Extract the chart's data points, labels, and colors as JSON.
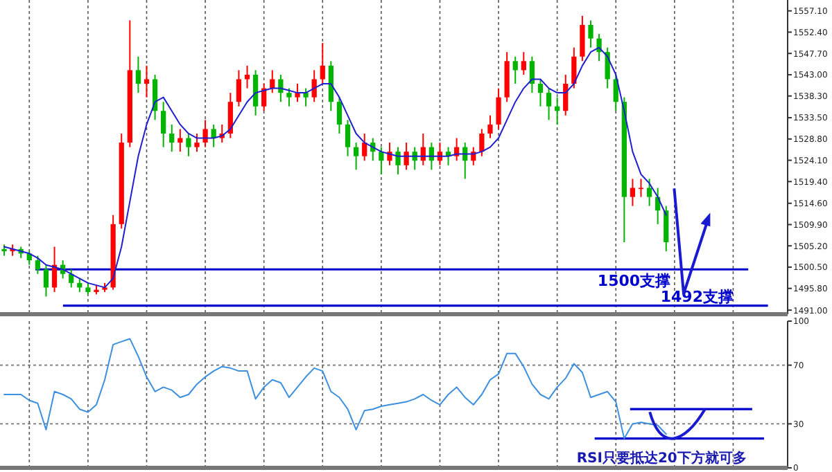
{
  "chart_data": [
    {
      "type": "candlestick",
      "categories": [
        null,
        null,
        null,
        null,
        null,
        null,
        null,
        null,
        null,
        null,
        null,
        null,
        null,
        null,
        null,
        null,
        null,
        null,
        null,
        null,
        null,
        null,
        null,
        null,
        null,
        null,
        null,
        null,
        null,
        null,
        null,
        null,
        null,
        null,
        null,
        null,
        null,
        null,
        null,
        null,
        null,
        null,
        null,
        null,
        null,
        null,
        null,
        null,
        null,
        null,
        null,
        null,
        null,
        null,
        null,
        null,
        null,
        null,
        null,
        null,
        null,
        null,
        null,
        null,
        null,
        null,
        null,
        null,
        null,
        null,
        null,
        null,
        null,
        null,
        null,
        null,
        null,
        null,
        null,
        null,
        null,
        null,
        null,
        null,
        null,
        null,
        null,
        null,
        null,
        null,
        null,
        null,
        null,
        null
      ],
      "ohlc": [
        [
          1504.5,
          1505.5,
          1503,
          1504
        ],
        [
          1504,
          1505.5,
          1503,
          1504.5
        ],
        [
          1504.5,
          1505,
          1502.5,
          1503.5
        ],
        [
          1503.5,
          1504,
          1501,
          1502
        ],
        [
          1502,
          1503,
          1499,
          1500
        ],
        [
          1500,
          1501,
          1494,
          1496
        ],
        [
          1496,
          1505,
          1495,
          1501
        ],
        [
          1501,
          1502,
          1498,
          1499
        ],
        [
          1499,
          1500,
          1496,
          1497
        ],
        [
          1497,
          1498,
          1495,
          1496
        ],
        [
          1496,
          1497,
          1494.5,
          1495
        ],
        [
          1495,
          1496.5,
          1494.5,
          1495.5
        ],
        [
          1495.5,
          1497,
          1495,
          1496
        ],
        [
          1496,
          1512,
          1495.5,
          1510
        ],
        [
          1510,
          1530,
          1509,
          1528
        ],
        [
          1528,
          1555,
          1527,
          1544
        ],
        [
          1544,
          1547,
          1539,
          1541
        ],
        [
          1541,
          1545,
          1538,
          1542
        ],
        [
          1542,
          1543,
          1533,
          1535
        ],
        [
          1535,
          1537,
          1527,
          1530
        ],
        [
          1530,
          1532,
          1526,
          1528
        ],
        [
          1528,
          1531,
          1526,
          1529
        ],
        [
          1529,
          1530,
          1525,
          1527
        ],
        [
          1527,
          1530,
          1526,
          1528
        ],
        [
          1528,
          1533,
          1527,
          1531
        ],
        [
          1531,
          1532,
          1527,
          1529
        ],
        [
          1529,
          1532,
          1528,
          1530
        ],
        [
          1530,
          1539,
          1529,
          1537
        ],
        [
          1537,
          1544,
          1536,
          1542
        ],
        [
          1542,
          1545,
          1540,
          1543
        ],
        [
          1543,
          1544,
          1534,
          1536
        ],
        [
          1536,
          1541,
          1535,
          1540
        ],
        [
          1540,
          1544,
          1539,
          1542
        ],
        [
          1542,
          1543,
          1537,
          1539
        ],
        [
          1539,
          1540,
          1536,
          1538
        ],
        [
          1538,
          1541,
          1537,
          1539
        ],
        [
          1539,
          1540,
          1536,
          1538
        ],
        [
          1538,
          1544,
          1537,
          1542
        ],
        [
          1542,
          1550,
          1541,
          1545
        ],
        [
          1545,
          1546,
          1535,
          1537
        ],
        [
          1537,
          1538,
          1530,
          1532
        ],
        [
          1532,
          1533,
          1525,
          1527
        ],
        [
          1527,
          1528,
          1522,
          1525
        ],
        [
          1525,
          1530,
          1524,
          1528
        ],
        [
          1528,
          1529,
          1524,
          1526
        ],
        [
          1526,
          1527,
          1521,
          1524
        ],
        [
          1524,
          1528,
          1523,
          1526
        ],
        [
          1526,
          1527,
          1521,
          1523
        ],
        [
          1523,
          1528,
          1522,
          1526
        ],
        [
          1526,
          1527,
          1522,
          1524
        ],
        [
          1524,
          1530,
          1523,
          1527
        ],
        [
          1527,
          1528,
          1522,
          1524
        ],
        [
          1524,
          1528,
          1523,
          1526
        ],
        [
          1526,
          1527,
          1523,
          1525
        ],
        [
          1525,
          1529,
          1524,
          1527
        ],
        [
          1527,
          1528,
          1520,
          1524
        ],
        [
          1524,
          1527,
          1523,
          1526
        ],
        [
          1526,
          1531,
          1525,
          1530
        ],
        [
          1530,
          1534,
          1529,
          1532
        ],
        [
          1532,
          1540,
          1531,
          1538
        ],
        [
          1538,
          1548,
          1537,
          1546
        ],
        [
          1546,
          1547,
          1541,
          1544
        ],
        [
          1544,
          1548,
          1543,
          1546
        ],
        [
          1546,
          1547,
          1539,
          1541
        ],
        [
          1541,
          1542,
          1536,
          1539
        ],
        [
          1539,
          1540,
          1533,
          1536
        ],
        [
          1536,
          1538,
          1532,
          1535
        ],
        [
          1535,
          1543,
          1534,
          1541
        ],
        [
          1541,
          1549,
          1540,
          1547
        ],
        [
          1547,
          1556,
          1546,
          1554
        ],
        [
          1554,
          1555,
          1549,
          1551
        ],
        [
          1551,
          1552,
          1546,
          1548
        ],
        [
          1548,
          1549,
          1540,
          1542
        ],
        [
          1542,
          1543,
          1535,
          1537
        ],
        [
          1537,
          1538,
          1506,
          1516
        ],
        [
          1516,
          1520,
          1514,
          1518
        ],
        [
          1518,
          1520,
          1516,
          1518
        ],
        [
          1518,
          1520,
          1514,
          1516
        ],
        [
          1516,
          1518,
          1510,
          1513
        ],
        [
          1513,
          1514,
          1504,
          1506
        ],
        null,
        null,
        null,
        null,
        null,
        null,
        null,
        null,
        null,
        null,
        null,
        null,
        null,
        null
      ],
      "colors": [
        "#00b400",
        "#ff0000",
        "#00b400",
        "#00b400",
        "#00b400",
        "#00b400",
        "#ff0000",
        "#00b400",
        "#00b400",
        "#00b400",
        "#00b400",
        "#ff0000",
        "#ff0000",
        "#ff0000",
        "#ff0000",
        "#ff0000",
        "#00b400",
        "#ff0000",
        "#00b400",
        "#00b400",
        "#00b400",
        "#ff0000",
        "#00b400",
        "#ff0000",
        "#ff0000",
        "#00b400",
        "#ff0000",
        "#ff0000",
        "#ff0000",
        "#ff0000",
        "#00b400",
        "#ff0000",
        "#ff0000",
        "#00b400",
        "#00b400",
        "#ff0000",
        "#00b400",
        "#ff0000",
        "#ff0000",
        "#00b400",
        "#00b400",
        "#00b400",
        "#00b400",
        "#ff0000",
        "#00b400",
        "#00b400",
        "#ff0000",
        "#00b400",
        "#ff0000",
        "#00b400",
        "#ff0000",
        "#00b400",
        "#ff0000",
        "#00b400",
        "#ff0000",
        "#00b400",
        "#ff0000",
        "#ff0000",
        "#ff0000",
        "#ff0000",
        "#ff0000",
        "#00b400",
        "#ff0000",
        "#00b400",
        "#00b400",
        "#00b400",
        "#00b400",
        "#ff0000",
        "#ff0000",
        "#ff0000",
        "#00b400",
        "#00b400",
        "#00b400",
        "#00b400",
        "#00b400",
        "#ff0000",
        "#ff0000",
        "#00b400",
        "#00b400",
        "#00b400",
        null,
        null,
        null,
        null,
        null,
        null,
        null,
        null,
        null,
        null,
        null,
        null,
        null,
        null
      ],
      "series": [
        {
          "type": "line",
          "color": "#1f1fd0",
          "values": [
            1505,
            1504.5,
            1504,
            1503.5,
            1502.5,
            1501,
            1500.5,
            1500,
            1499,
            1498,
            1497,
            1496.5,
            1496,
            1498,
            1505,
            1515,
            1525,
            1532,
            1537,
            1538,
            1535,
            1532,
            1530,
            1529,
            1529,
            1529,
            1529.5,
            1531,
            1534,
            1537,
            1539,
            1539.5,
            1540,
            1540,
            1539.5,
            1539,
            1539,
            1540,
            1541,
            1541,
            1538,
            1534,
            1530,
            1528,
            1527,
            1526,
            1525.5,
            1525,
            1525,
            1525,
            1525,
            1525,
            1525,
            1525,
            1525.5,
            1525.5,
            1525.5,
            1526,
            1527,
            1529,
            1533,
            1537,
            1540,
            1542,
            1542,
            1540,
            1539,
            1539,
            1541,
            1545,
            1548,
            1549,
            1547,
            1543,
            1535,
            1526,
            1521,
            1519,
            1516,
            1512,
            null,
            null,
            null,
            null,
            null,
            null,
            null,
            null,
            null,
            null,
            null,
            null,
            null,
            null
          ]
        }
      ],
      "ylim": [
        1490.1,
        1559.5
      ],
      "yticks": [
        {
          "value": 1557.1,
          "label": "1557.10"
        },
        {
          "value": 1552.4,
          "label": "1552.40"
        },
        {
          "value": 1547.7,
          "label": "1547.70"
        },
        {
          "value": 1543.0,
          "label": "1543.00"
        },
        {
          "value": 1538.3,
          "label": "1538.30"
        },
        {
          "value": 1533.5,
          "label": "1533.50"
        },
        {
          "value": 1528.8,
          "label": "1528.80"
        },
        {
          "value": 1524.1,
          "label": "1524.10"
        },
        {
          "value": 1519.4,
          "label": "1519.40"
        },
        {
          "value": 1514.6,
          "label": "1514.60"
        },
        {
          "value": 1509.9,
          "label": "1509.90"
        },
        {
          "value": 1505.2,
          "label": "1505.20"
        },
        {
          "value": 1500.5,
          "label": "1500.50"
        },
        {
          "value": 1495.8,
          "label": "1495.80"
        },
        {
          "value": 1491.0,
          "label": "1491.00"
        }
      ],
      "grid": "x",
      "tick_labels": "y",
      "ref_lines": [
        {
          "axis": "y",
          "value": 1500,
          "label": "1500支撑",
          "color": "#0000cc"
        },
        {
          "axis": "y",
          "value": 1492,
          "label": "1492支撑",
          "color": "#0000cc"
        }
      ]
    },
    {
      "type": "line",
      "categories": [
        null,
        null,
        null,
        null,
        null,
        null,
        null,
        null,
        null,
        null,
        null,
        null,
        null,
        null,
        null,
        null,
        null,
        null,
        null,
        null,
        null,
        null,
        null,
        null,
        null,
        null,
        null,
        null,
        null,
        null,
        null,
        null,
        null,
        null,
        null,
        null,
        null,
        null,
        null,
        null,
        null,
        null,
        null,
        null,
        null,
        null,
        null,
        null,
        null,
        null,
        null,
        null,
        null,
        null,
        null,
        null,
        null,
        null,
        null,
        null,
        null,
        null,
        null,
        null,
        null,
        null,
        null,
        null,
        null,
        null,
        null,
        null,
        null,
        null,
        null,
        null,
        null,
        null,
        null,
        null,
        null,
        null,
        null,
        null,
        null,
        null,
        null,
        null,
        null,
        null,
        null,
        null,
        null,
        null
      ],
      "series": [
        {
          "color": "#3d8fe0",
          "values": [
            50,
            50,
            50,
            46,
            44,
            26,
            52,
            50,
            47,
            40,
            38,
            43,
            60,
            84,
            86,
            88,
            76,
            62,
            52,
            55,
            53,
            48,
            50,
            57,
            62,
            66,
            69,
            68,
            66,
            66,
            47,
            55,
            60,
            58,
            48,
            55,
            62,
            68,
            66,
            52,
            48,
            40,
            26,
            39,
            40,
            42,
            43,
            44,
            45,
            47,
            50,
            46,
            43,
            50,
            55,
            48,
            43,
            50,
            60,
            64,
            78,
            78,
            69,
            57,
            50,
            47,
            55,
            61,
            71,
            65,
            48,
            50,
            52,
            45,
            20,
            30,
            31,
            30,
            29,
            23,
            null,
            null,
            null,
            null,
            null,
            null,
            null,
            null,
            null,
            null,
            null,
            null,
            null,
            null
          ]
        }
      ],
      "ylim": [
        0,
        100
      ],
      "yticks": [
        0,
        30,
        70,
        100
      ],
      "grid": true,
      "tick_labels": "y",
      "ref_lines": [
        {
          "axis": "y",
          "value": 40,
          "color": "#0000cc"
        },
        {
          "axis": "y",
          "value": 20,
          "color": "#0000cc"
        }
      ],
      "annotations": [
        "RSI只要抵达20下方就可多"
      ]
    }
  ]
}
